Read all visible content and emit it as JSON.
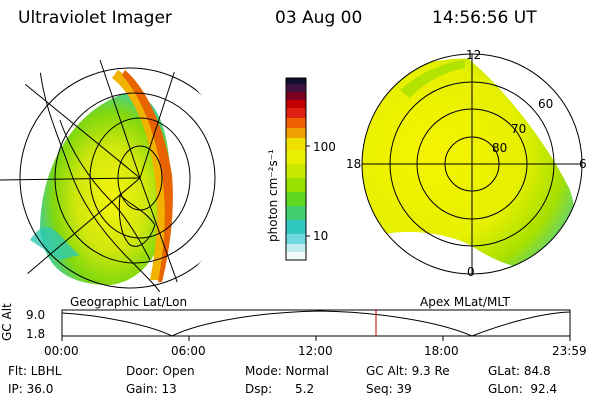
{
  "header": {
    "instrument": "Ultraviolet Imager",
    "date": "03 Aug 00",
    "time": "14:56:56 UT"
  },
  "left_panel": {
    "caption": "Geographic Lat/Lon"
  },
  "right_panel": {
    "caption": "Apex MLat/MLT",
    "mlt_labels": [
      "12",
      "18",
      "6",
      "0"
    ],
    "mlat_labels": [
      "60",
      "70",
      "80"
    ]
  },
  "colorbar": {
    "unit": "photon cm⁻²s⁻¹",
    "tick_labels": [
      "100",
      "10"
    ],
    "scale": "log"
  },
  "orbit_plot": {
    "ylabel": "GC Alt",
    "y_ticks": [
      "9.0",
      "1.8"
    ],
    "x_ticks": [
      "00:00",
      "06:00",
      "12:00",
      "18:00",
      "23:59"
    ],
    "marker_color": "#cc0000"
  },
  "info": {
    "flt": "Flt: LBHL",
    "door": "Door: Open",
    "mode": "Mode: Normal",
    "gc_alt": "GC Alt: 9.3 Re",
    "glat": "GLat:  84.8",
    "ip": "IP: 36.0",
    "gain": "Gain: 13",
    "dsp": "Dsp:      5.2",
    "seq": "Seq: 39",
    "glon": "GLon:  92.4"
  }
}
